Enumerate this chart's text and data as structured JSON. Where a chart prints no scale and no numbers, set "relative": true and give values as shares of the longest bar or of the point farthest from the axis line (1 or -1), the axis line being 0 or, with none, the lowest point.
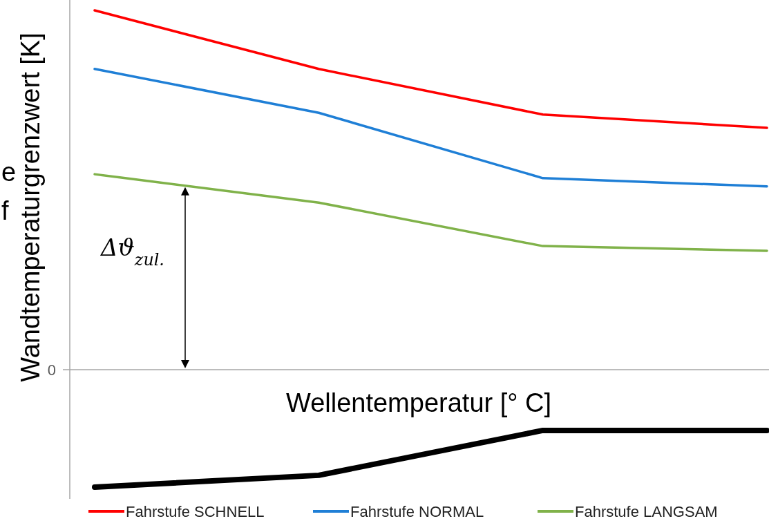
{
  "chart_data": {
    "type": "line",
    "relative": true,
    "ylabel": "Wandtemperaturgrenzwert [K]",
    "xlabel": "Wellentemperatur [° C]",
    "categories": [
      null,
      null,
      null,
      null
    ],
    "legend": "bottom",
    "series": [
      {
        "name": "Fahrstufe SCHNELL",
        "color": "#ff0000",
        "values": [
          1,
          0.837,
          0.71,
          0.673
        ]
      },
      {
        "name": "Fahrstufe NORMAL",
        "color": "#1f7fd6",
        "values": [
          0.837,
          0.715,
          0.533,
          0.51
        ]
      },
      {
        "name": "Fahrstufe LANGSAM",
        "color": "#80b24a",
        "values": [
          0.544,
          0.465,
          0.344,
          0.331
        ]
      },
      {
        "color": "#000000",
        "values": [
          -0.327,
          -0.294,
          -0.169,
          -0.169
        ]
      }
    ],
    "annotations": [
      "Δϑ$_{zul.}$",
      "e",
      "f",
      "0"
    ]
  }
}
